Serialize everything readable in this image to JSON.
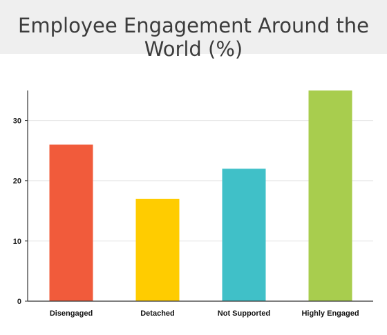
{
  "chart_data": {
    "type": "bar",
    "title": "Employee Engagement Around the World (%)",
    "categories": [
      "Disengaged",
      "Detached",
      "Not Supported",
      "Highly Engaged"
    ],
    "values": [
      26,
      17,
      22,
      35
    ],
    "colors": [
      "#f15b3b",
      "#ffcc00",
      "#40c0c8",
      "#a8cd4e"
    ],
    "xlabel": "",
    "ylabel": "",
    "ylim": [
      0,
      35
    ],
    "yticks": [
      0,
      10,
      20,
      30
    ],
    "grid": true,
    "legend": "none"
  }
}
